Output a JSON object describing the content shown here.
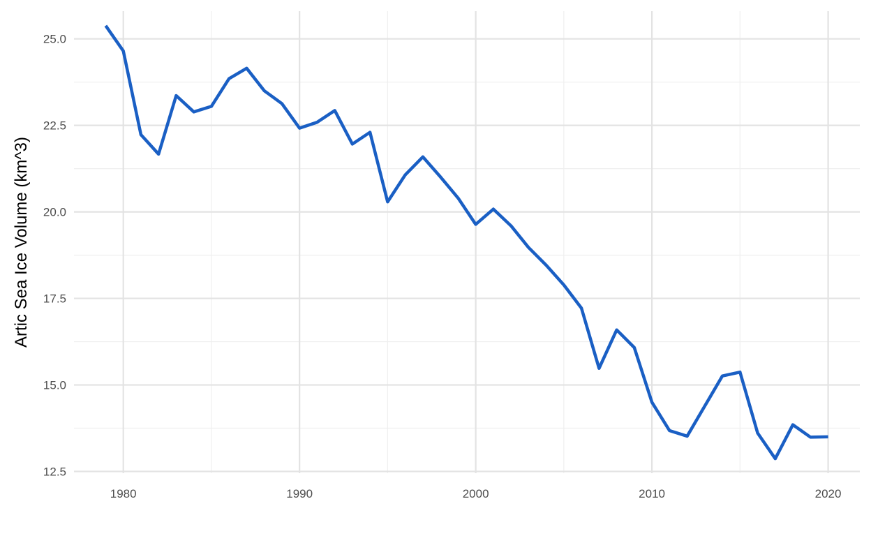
{
  "chart_data": {
    "type": "line",
    "title": "",
    "xlabel": "",
    "ylabel": "Artic Sea Ice Volume (km^3)",
    "xlim": [
      1977.2,
      2021.8
    ],
    "ylim": [
      12.45,
      25.8
    ],
    "x_ticks": [
      1980,
      1990,
      2000,
      2010,
      2020
    ],
    "x_tick_labels": [
      "1980",
      "1990",
      "2000",
      "2010",
      "2020"
    ],
    "x_minor_ticks": [
      1985,
      1995,
      2005,
      2015
    ],
    "y_ticks": [
      12.5,
      15.0,
      17.5,
      20.0,
      22.5,
      25.0
    ],
    "y_tick_labels": [
      "12.5",
      "15.0",
      "17.5",
      "20.0",
      "22.5",
      "25.0"
    ],
    "y_minor_ticks": [
      13.75,
      16.25,
      18.75,
      21.25,
      23.75
    ],
    "grid": true,
    "legend": "none",
    "line_color": "#1a5fc4",
    "grid_major_color": "#e3e3e3",
    "grid_minor_color": "#efefef",
    "series": [
      {
        "x": [
          1979,
          1980,
          1981,
          1982,
          1983,
          1984,
          1985,
          1986,
          1987,
          1988,
          1989,
          1990,
          1991,
          1992,
          1993,
          1994,
          1995,
          1996,
          1997,
          1998,
          1999,
          2000,
          2001,
          2002,
          2003,
          2004,
          2005,
          2006,
          2007,
          2008,
          2009,
          2010,
          2011,
          2012,
          2013,
          2014,
          2015,
          2016,
          2017,
          2018,
          2019,
          2020
        ],
        "values": [
          25.38,
          24.65,
          22.23,
          21.67,
          23.36,
          22.89,
          23.05,
          23.85,
          24.15,
          23.5,
          23.13,
          22.42,
          22.59,
          22.93,
          21.96,
          22.3,
          20.29,
          21.07,
          21.59,
          21.01,
          20.4,
          19.64,
          20.08,
          19.6,
          18.97,
          18.46,
          17.89,
          17.22,
          15.48,
          16.59,
          16.08,
          14.5,
          13.68,
          13.52,
          14.39,
          15.26,
          15.37,
          13.61,
          12.87,
          13.85,
          13.49,
          13.5
        ]
      }
    ]
  }
}
